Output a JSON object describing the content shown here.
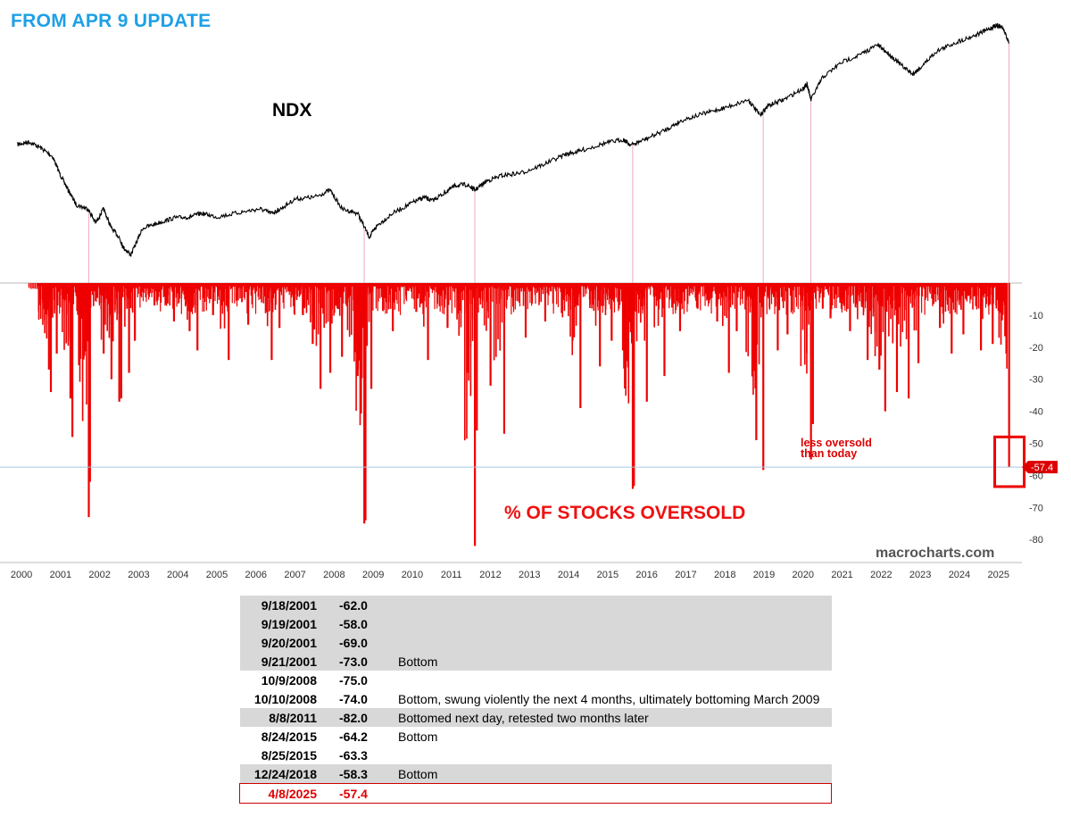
{
  "header": "FROM APR 9 UPDATE",
  "credit": "macrocharts.com",
  "annotation": [
    "less oversold",
    "than today"
  ],
  "colors": {
    "header": "#1ea0e6",
    "bars": "#ee0000",
    "highlight": "#ee0000",
    "ndx_line": "#000000"
  },
  "chart_data": {
    "type": "line+bar",
    "top_panel": {
      "type": "line",
      "series": [
        {
          "name": "NDX",
          "x": [
            1999.9,
            2000.2,
            2000.5,
            2000.8,
            2001.0,
            2001.2,
            2001.4,
            2001.7,
            2001.9,
            2002.1,
            2002.3,
            2002.5,
            2002.6,
            2002.8,
            2003.1,
            2003.5,
            2003.9,
            2004.3,
            2004.6,
            2005.0,
            2005.6,
            2006.1,
            2006.4,
            2006.6,
            2007.0,
            2007.5,
            2007.9,
            2008.2,
            2008.6,
            2008.9,
            2009.1,
            2009.5,
            2010.0,
            2010.3,
            2010.5,
            2010.8,
            2011.1,
            2011.4,
            2011.6,
            2011.9,
            2012.3,
            2012.8,
            2013.3,
            2013.9,
            2014.3,
            2014.9,
            2015.4,
            2015.6,
            2016.0,
            2016.5,
            2016.9,
            2017.5,
            2018.0,
            2018.6,
            2018.9,
            2019.1,
            2019.5,
            2020.0,
            2020.1,
            2020.2,
            2020.5,
            2021.0,
            2021.5,
            2021.9,
            2022.2,
            2022.5,
            2022.8,
            2023.0,
            2023.4,
            2023.9,
            2024.4,
            2024.8,
            2024.95,
            2025.1,
            2025.27
          ],
          "y": [
            4150,
            4300,
            3950,
            3500,
            2700,
            2200,
            1800,
            1700,
            1400,
            1700,
            1300,
            1150,
            1000,
            900,
            1300,
            1400,
            1500,
            1520,
            1600,
            1520,
            1620,
            1700,
            1600,
            1680,
            1950,
            2000,
            2200,
            1700,
            1600,
            1150,
            1350,
            1600,
            1850,
            2000,
            1900,
            2100,
            2350,
            2380,
            2200,
            2500,
            2700,
            2800,
            3100,
            3600,
            3800,
            4200,
            4450,
            4100,
            4500,
            5100,
            5800,
            6400,
            6900,
            7700,
            6200,
            7100,
            7700,
            9000,
            9600,
            7700,
            10500,
            13000,
            14500,
            16500,
            14500,
            12500,
            11000,
            12000,
            15000,
            17000,
            18800,
            20700,
            21700,
            21000,
            17090
          ],
          "events_drop_lines_x": [
            2001.72,
            2008.77,
            2011.6,
            2015.64,
            2018.98,
            2020.2,
            2025.27
          ]
        }
      ],
      "label": "NDX"
    },
    "bottom_panel": {
      "type": "bar",
      "series_name": "% OF STOCKS OVERSOLD",
      "ylim": [
        -82,
        0
      ],
      "yticks": [
        -10,
        -20,
        -30,
        -40,
        -50,
        -60,
        -70,
        -80
      ],
      "spikes": [
        {
          "x": 2000.45,
          "y": -4
        },
        {
          "x": 2000.7,
          "y": -27
        },
        {
          "x": 2000.75,
          "y": -34
        },
        {
          "x": 2000.9,
          "y": -22
        },
        {
          "x": 2001.25,
          "y": -36
        },
        {
          "x": 2001.3,
          "y": -48
        },
        {
          "x": 2001.72,
          "y": -73
        },
        {
          "x": 2001.75,
          "y": -62
        },
        {
          "x": 2002.1,
          "y": -22
        },
        {
          "x": 2002.3,
          "y": -30
        },
        {
          "x": 2002.5,
          "y": -37
        },
        {
          "x": 2002.55,
          "y": -36
        },
        {
          "x": 2002.75,
          "y": -28
        },
        {
          "x": 2002.9,
          "y": -18
        },
        {
          "x": 2003.4,
          "y": -7
        },
        {
          "x": 2003.9,
          "y": -12
        },
        {
          "x": 2004.3,
          "y": -15
        },
        {
          "x": 2004.5,
          "y": -21
        },
        {
          "x": 2004.9,
          "y": -10
        },
        {
          "x": 2005.3,
          "y": -24
        },
        {
          "x": 2005.8,
          "y": -13
        },
        {
          "x": 2006.4,
          "y": -24
        },
        {
          "x": 2006.6,
          "y": -14
        },
        {
          "x": 2007.2,
          "y": -10
        },
        {
          "x": 2007.45,
          "y": -19
        },
        {
          "x": 2007.65,
          "y": -33
        },
        {
          "x": 2007.9,
          "y": -28
        },
        {
          "x": 2008.2,
          "y": -23
        },
        {
          "x": 2008.6,
          "y": -29
        },
        {
          "x": 2008.77,
          "y": -75
        },
        {
          "x": 2008.8,
          "y": -74
        },
        {
          "x": 2008.95,
          "y": -33
        },
        {
          "x": 2009.5,
          "y": -15
        },
        {
          "x": 2010.1,
          "y": -9
        },
        {
          "x": 2010.4,
          "y": -24
        },
        {
          "x": 2010.9,
          "y": -14
        },
        {
          "x": 2011.4,
          "y": -28
        },
        {
          "x": 2011.6,
          "y": -82
        },
        {
          "x": 2011.65,
          "y": -46
        },
        {
          "x": 2012.0,
          "y": -32
        },
        {
          "x": 2012.35,
          "y": -47
        },
        {
          "x": 2012.9,
          "y": -17
        },
        {
          "x": 2013.4,
          "y": -12
        },
        {
          "x": 2014.1,
          "y": -18
        },
        {
          "x": 2014.3,
          "y": -39
        },
        {
          "x": 2014.8,
          "y": -26
        },
        {
          "x": 2015.1,
          "y": -18
        },
        {
          "x": 2015.64,
          "y": -64.2
        },
        {
          "x": 2015.67,
          "y": -63.3
        },
        {
          "x": 2016.0,
          "y": -37
        },
        {
          "x": 2016.45,
          "y": -29
        },
        {
          "x": 2016.85,
          "y": -15
        },
        {
          "x": 2017.3,
          "y": -8
        },
        {
          "x": 2017.8,
          "y": -12
        },
        {
          "x": 2018.1,
          "y": -28
        },
        {
          "x": 2018.3,
          "y": -15
        },
        {
          "x": 2018.8,
          "y": -49
        },
        {
          "x": 2018.98,
          "y": -58.3
        },
        {
          "x": 2019.35,
          "y": -21
        },
        {
          "x": 2019.6,
          "y": -16
        },
        {
          "x": 2020.2,
          "y": -55
        },
        {
          "x": 2020.25,
          "y": -44
        },
        {
          "x": 2020.7,
          "y": -11
        },
        {
          "x": 2021.2,
          "y": -15
        },
        {
          "x": 2021.65,
          "y": -24
        },
        {
          "x": 2021.95,
          "y": -27
        },
        {
          "x": 2022.1,
          "y": -40
        },
        {
          "x": 2022.4,
          "y": -34
        },
        {
          "x": 2022.7,
          "y": -36
        },
        {
          "x": 2022.95,
          "y": -25
        },
        {
          "x": 2023.5,
          "y": -14
        },
        {
          "x": 2023.8,
          "y": -22
        },
        {
          "x": 2024.1,
          "y": -16
        },
        {
          "x": 2024.55,
          "y": -21
        },
        {
          "x": 2024.85,
          "y": -19
        },
        {
          "x": 2025.2,
          "y": -22
        },
        {
          "x": 2025.27,
          "y": -57.4
        }
      ],
      "last_value_label": "-57.4",
      "reference_line": -57.4,
      "label": "% OF STOCKS OVERSOLD"
    },
    "x_axis": {
      "ticks": [
        "2000",
        "2001",
        "2002",
        "2003",
        "2004",
        "2005",
        "2006",
        "2007",
        "2008",
        "2009",
        "2010",
        "2011",
        "2012",
        "2013",
        "2014",
        "2015",
        "2016",
        "2017",
        "2018",
        "2019",
        "2020",
        "2021",
        "2022",
        "2023",
        "2024",
        "2025"
      ]
    }
  },
  "table": [
    {
      "date": "9/18/2001",
      "value": "-62.0",
      "note": "",
      "shaded": true
    },
    {
      "date": "9/19/2001",
      "value": "-58.0",
      "note": "",
      "shaded": true
    },
    {
      "date": "9/20/2001",
      "value": "-69.0",
      "note": "",
      "shaded": true
    },
    {
      "date": "9/21/2001",
      "value": "-73.0",
      "note": "Bottom",
      "shaded": true
    },
    {
      "date": "10/9/2008",
      "value": "-75.0",
      "note": "",
      "shaded": false
    },
    {
      "date": "10/10/2008",
      "value": "-74.0",
      "note": "Bottom, swung violently the next  4 months, ultimately bottoming March 2009",
      "shaded": false
    },
    {
      "date": "8/8/2011",
      "value": "-82.0",
      "note": "Bottomed next day, retested two months later",
      "shaded": true
    },
    {
      "date": "8/24/2015",
      "value": "-64.2",
      "note": "Bottom",
      "shaded": false
    },
    {
      "date": "8/25/2015",
      "value": "-63.3",
      "note": "",
      "shaded": false
    },
    {
      "date": "12/24/2018",
      "value": "-58.3",
      "note": "Bottom",
      "shaded": true
    },
    {
      "date": "4/8/2025",
      "value": "-57.4",
      "note": "",
      "shaded": false,
      "today": true
    }
  ]
}
